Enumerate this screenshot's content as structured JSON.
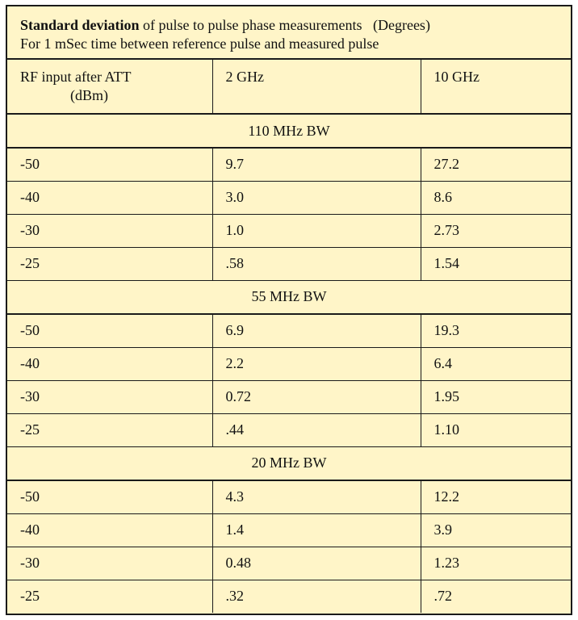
{
  "title": {
    "bold": "Standard deviation",
    "rest": " of pulse to pulse phase measurements   (Degrees)",
    "line2": "For 1 mSec time between reference pulse and measured pulse"
  },
  "header": {
    "col1_line1": "RF input after ATT",
    "col1_line2": "(dBm)",
    "col2": "2 GHz",
    "col3": "10 GHz"
  },
  "sections": [
    {
      "label": "110 MHz BW",
      "rows": [
        [
          "-50",
          "9.7",
          "27.2"
        ],
        [
          "-40",
          "3.0",
          "8.6"
        ],
        [
          "-30",
          "1.0",
          "2.73"
        ],
        [
          "-25",
          ".58",
          "1.54"
        ]
      ]
    },
    {
      "label": "55 MHz BW",
      "rows": [
        [
          "-50",
          "6.9",
          "19.3"
        ],
        [
          "-40",
          "2.2",
          "6.4"
        ],
        [
          "-30",
          "0.72",
          "1.95"
        ],
        [
          "-25",
          ".44",
          "1.10"
        ]
      ]
    },
    {
      "label": "20 MHz BW",
      "rows": [
        [
          "-50",
          "4.3",
          "12.2"
        ],
        [
          "-40",
          "1.4",
          "3.9"
        ],
        [
          "-30",
          "0.48",
          "1.23"
        ],
        [
          "-25",
          ".32",
          ".72"
        ]
      ]
    }
  ]
}
